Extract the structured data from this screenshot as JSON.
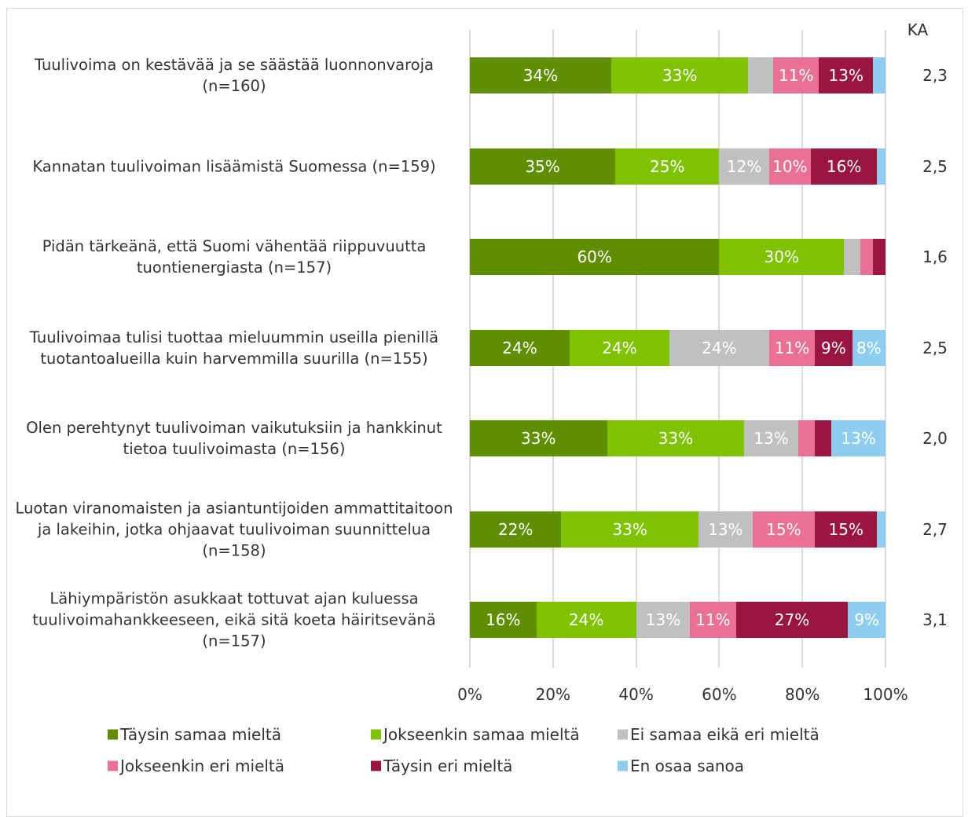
{
  "chart_data": {
    "type": "stacked_bar_horizontal",
    "categories": [
      "Tuulivoima on kestävää ja se säästää luonnonvaroja (n=160)",
      "Kannatan tuulivoiman lisäämistä Suomessa (n=159)",
      "Pidän tärkeänä, että Suomi vähentää riippuvuutta tuontienergiasta (n=157)",
      "Tuulivoimaa tulisi tuottaa mieluummin useilla pienillä tuotantoalueilla kuin harvemmilla suurilla (n=155)",
      "Olen perehtynyt tuulivoiman vaikutuksiin ja hankkinut tietoa tuulivoimasta (n=156)",
      "Luotan viranomaisten ja asiantuntijoiden ammattitaitoon ja lakeihin, jotka ohjaavat tuulivoiman suunnittelua (n=158)",
      "Lähiympäristön asukkaat tottuvat ajan kuluessa tuulivoimahankkeeseen, eikä sitä koeta häiritsevänä (n=157)"
    ],
    "series": [
      {
        "name": "Täysin samaa mieltä",
        "color": "#5f8f00",
        "values": [
          34,
          35,
          60,
          24,
          33,
          22,
          16
        ],
        "value_labels": [
          "34%",
          "35%",
          "60%",
          "24%",
          "33%",
          "22%",
          "16%"
        ]
      },
      {
        "name": "Jokseenkin samaa mieltä",
        "color": "#7fc300",
        "values": [
          33,
          25,
          30,
          24,
          33,
          33,
          24
        ],
        "value_labels": [
          "33%",
          "25%",
          "30%",
          "24%",
          "33%",
          "33%",
          "24%"
        ]
      },
      {
        "name": "Ei samaa eikä eri mieltä",
        "color": "#c0c0c0",
        "values": [
          6,
          12,
          4,
          24,
          13,
          13,
          13
        ],
        "value_labels": [
          null,
          "12%",
          null,
          "24%",
          "13%",
          "13%",
          "13%"
        ]
      },
      {
        "name": "Jokseenkin eri mieltä",
        "color": "#eb7095",
        "values": [
          11,
          10,
          3,
          11,
          4,
          15,
          11
        ],
        "value_labels": [
          "11%",
          "10%",
          null,
          "11%",
          null,
          "15%",
          "11%"
        ]
      },
      {
        "name": "Täysin eri mieltä",
        "color": "#9a1641",
        "values": [
          13,
          16,
          3,
          9,
          4,
          15,
          27
        ],
        "value_labels": [
          "13%",
          "16%",
          null,
          "9%",
          null,
          "15%",
          "27%"
        ]
      },
      {
        "name": "En osaa sanoa",
        "color": "#8ecdf0",
        "values": [
          3,
          2,
          0,
          8,
          13,
          2,
          9
        ],
        "value_labels": [
          null,
          null,
          null,
          "8%",
          "13%",
          null,
          "9%"
        ]
      }
    ],
    "mean_title": "KA",
    "mean_values": [
      {
        "value": 2.3,
        "label": "2,3"
      },
      {
        "value": 2.5,
        "label": "2,5"
      },
      {
        "value": 1.6,
        "label": "1,6"
      },
      {
        "value": 2.5,
        "label": "2,5"
      },
      {
        "value": 2.0,
        "label": "2,0"
      },
      {
        "value": 2.7,
        "label": "2,7"
      },
      {
        "value": 3.1,
        "label": "3,1"
      }
    ],
    "xlim": [
      0,
      100
    ],
    "xticks": [
      {
        "value": 0,
        "label": "0%"
      },
      {
        "value": 20,
        "label": "20%"
      },
      {
        "value": 40,
        "label": "40%"
      },
      {
        "value": 60,
        "label": "60%"
      },
      {
        "value": 80,
        "label": "80%"
      },
      {
        "value": 100,
        "label": "100%"
      }
    ],
    "grid": true
  }
}
